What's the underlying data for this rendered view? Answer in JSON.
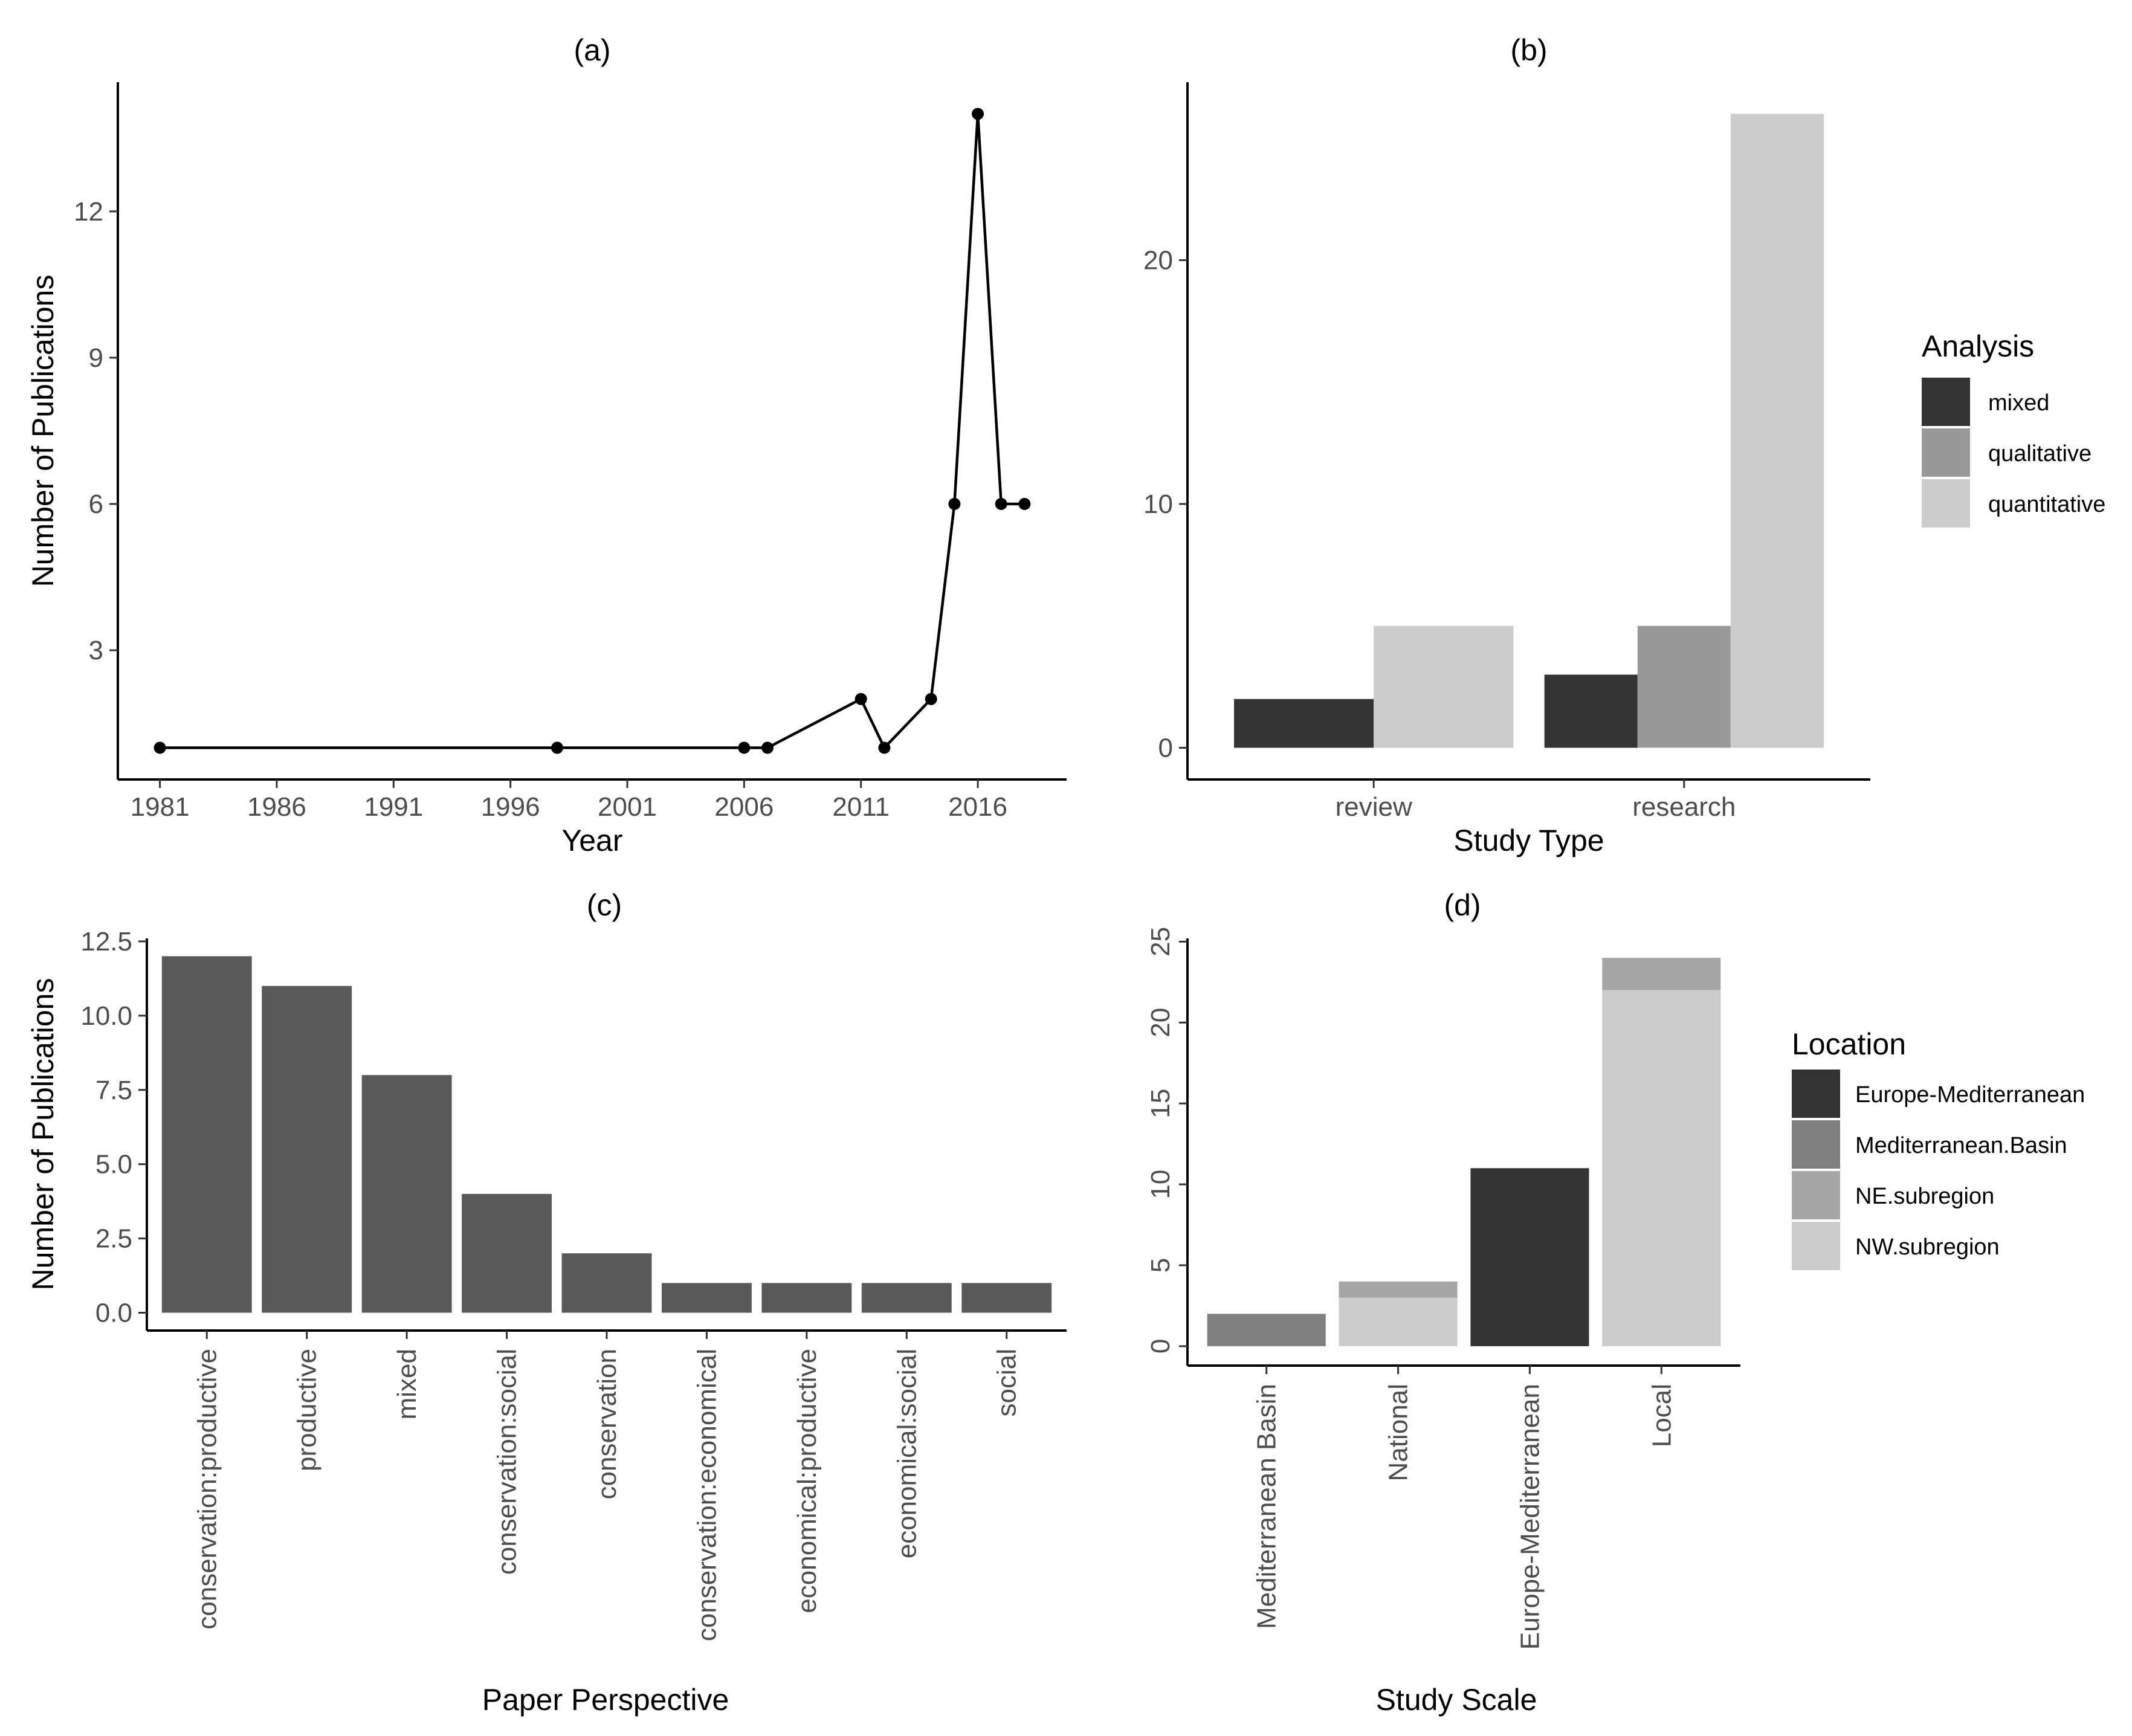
{
  "colors": {
    "mixed": "#333333",
    "qualitative": "#999999",
    "quantitative": "#cccccc",
    "europe_mediterranean": "#333333",
    "mediterranean_basin": "#808080",
    "ne_subregion": "#a6a6a6",
    "nw_subregion": "#cccccc",
    "bar_c": "#595959",
    "line": "#000000"
  },
  "chart_data": [
    {
      "id": "a",
      "panel_label": "(a)",
      "type": "line",
      "xlabel": "Year",
      "ylabel": "Number of Publications",
      "x": [
        1981,
        1998,
        2006,
        2007,
        2011,
        2012,
        2014,
        2015,
        2016,
        2017,
        2018
      ],
      "values": [
        1,
        1,
        1,
        1,
        2,
        1,
        2,
        6,
        14,
        6,
        6
      ],
      "xlim": [
        1979.2,
        2019.8
      ],
      "ylim": [
        0.35,
        14.65
      ],
      "xticks": [
        1981,
        1986,
        1991,
        1996,
        2001,
        2006,
        2011,
        2016
      ],
      "xtick_labels": [
        "1981",
        "1986",
        "1991",
        "1996",
        "2001",
        "2006",
        "2011",
        "2016"
      ],
      "yticks": [
        3,
        6,
        9,
        12
      ],
      "ytick_labels": [
        "3",
        "6",
        "9",
        "12"
      ]
    },
    {
      "id": "b",
      "panel_label": "(b)",
      "type": "bar",
      "xlabel": "Study Type",
      "ylabel": "",
      "categories": [
        "review",
        "research"
      ],
      "series": [
        {
          "name": "mixed",
          "values": [
            2,
            3
          ]
        },
        {
          "name": "qualitative",
          "values": [
            0,
            5
          ]
        },
        {
          "name": "quantitative",
          "values": [
            5,
            26
          ]
        }
      ],
      "ylim": [
        -1.3,
        27.3
      ],
      "yticks": [
        0,
        10,
        20
      ],
      "ytick_labels": [
        "0",
        "10",
        "20"
      ],
      "legend": {
        "title": "Analysis",
        "entries": [
          "mixed",
          "qualitative",
          "quantitative"
        ],
        "position": "right"
      }
    },
    {
      "id": "c",
      "panel_label": "(c)",
      "type": "bar",
      "xlabel": "Paper Perspective",
      "ylabel": "Number of Publications",
      "categories": [
        "conservation:productive",
        "productive",
        "mixed",
        "conservation:social",
        "conservation",
        "conservation:economical",
        "economical:productive",
        "economical:social",
        "social"
      ],
      "values": [
        12,
        11,
        8,
        4,
        2,
        1,
        1,
        1,
        1
      ],
      "ylim": [
        -0.6,
        12.6
      ],
      "yticks": [
        0,
        2.5,
        5,
        7.5,
        10,
        12.5
      ],
      "ytick_labels": [
        "0.0",
        "2.5",
        "5.0",
        "7.5",
        "10.0",
        "12.5"
      ]
    },
    {
      "id": "d",
      "panel_label": "(d)",
      "type": "bar",
      "stacked": true,
      "xlabel": "Study Scale",
      "ylabel": "",
      "categories": [
        "Mediterranean Basin",
        "National",
        "Europe-Mediterranean",
        "Local"
      ],
      "series": [
        {
          "name": "Europe-Mediterranean",
          "values": [
            0,
            0,
            11,
            0
          ]
        },
        {
          "name": "Mediterranean.Basin",
          "values": [
            2,
            0,
            0,
            0
          ]
        },
        {
          "name": "NE.subregion",
          "values": [
            0,
            1,
            0,
            2
          ]
        },
        {
          "name": "NW.subregion",
          "values": [
            0,
            3,
            0,
            22
          ]
        }
      ],
      "ylim": [
        -1.2,
        25.2
      ],
      "yticks": [
        0,
        5,
        10,
        15,
        20,
        25
      ],
      "ytick_labels": [
        "0",
        "5",
        "10",
        "15",
        "20",
        "25"
      ],
      "legend": {
        "title": "Location",
        "entries": [
          "Europe-Mediterranean",
          "Mediterranean.Basin",
          "NE.subregion",
          "NW.subregion"
        ],
        "position": "right"
      }
    }
  ]
}
